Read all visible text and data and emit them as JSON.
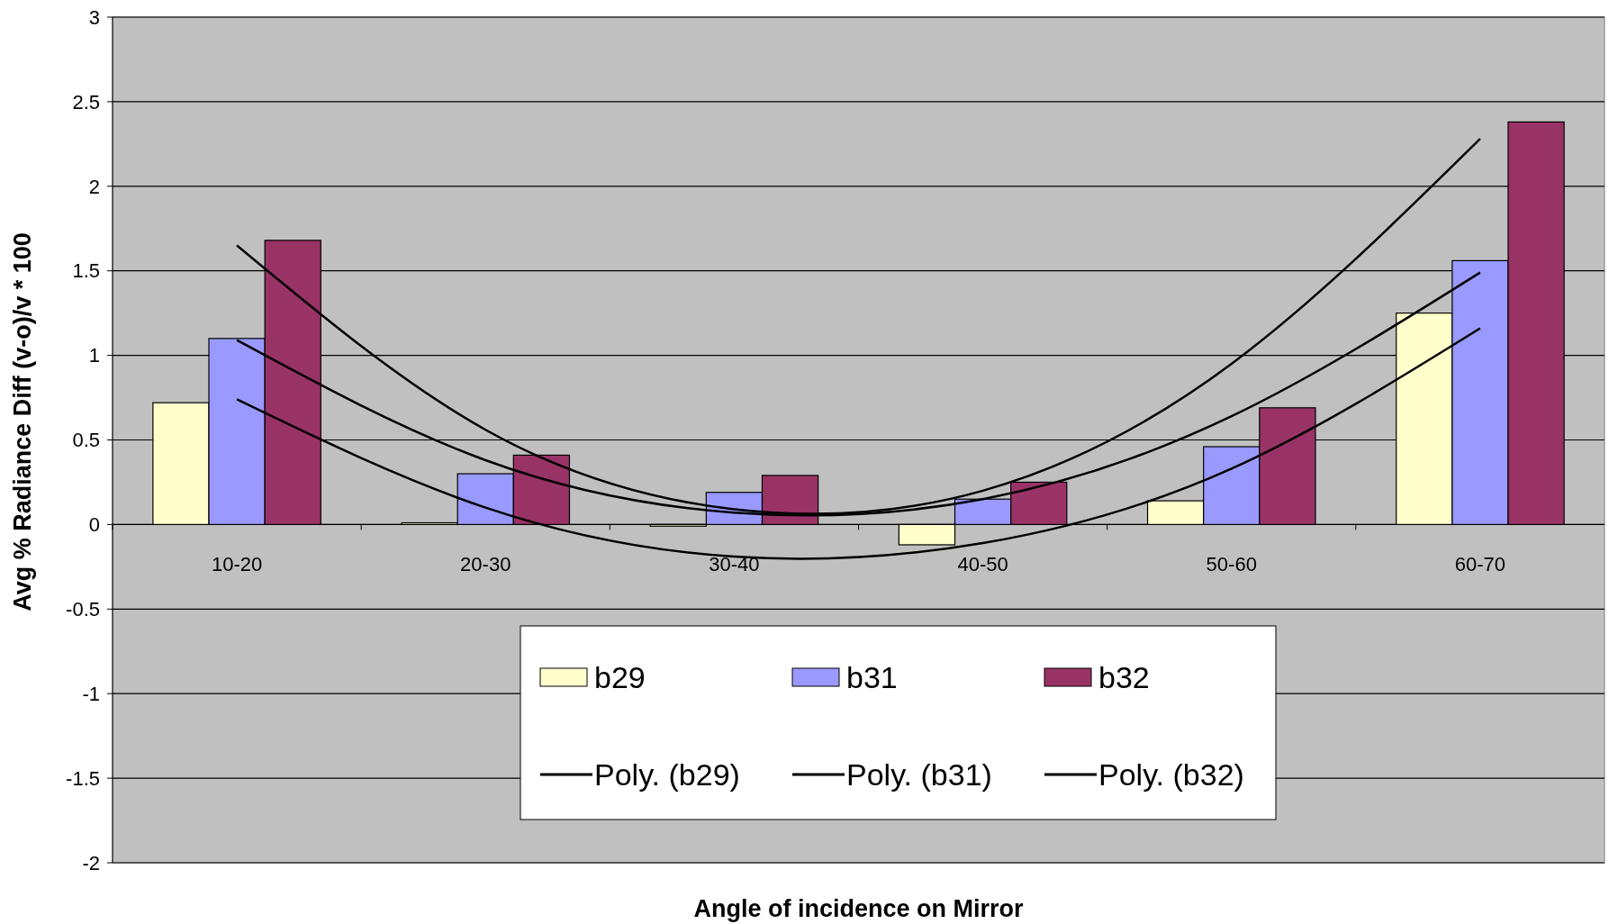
{
  "chart_data": {
    "type": "bar",
    "xlabel": "Angle of incidence on Mirror",
    "ylabel": "Avg % Radiance Diff (v-o)/v * 100",
    "categories": [
      "10-20",
      "20-30",
      "30-40",
      "40-50",
      "50-60",
      "60-70"
    ],
    "series": [
      {
        "name": "b29",
        "color": "#ffffcc",
        "values": [
          0.72,
          0.01,
          -0.01,
          -0.12,
          0.14,
          1.25
        ]
      },
      {
        "name": "b31",
        "color": "#9999ff",
        "values": [
          1.1,
          0.3,
          0.19,
          0.15,
          0.46,
          1.56
        ]
      },
      {
        "name": "b32",
        "color": "#993366",
        "values": [
          1.68,
          0.41,
          0.29,
          0.25,
          0.69,
          2.38
        ]
      },
      {
        "name": "Poly. (b29)",
        "type": "line",
        "color": "#000000",
        "values": [
          0.74,
          0.1,
          -0.19,
          -0.11,
          0.33,
          1.16
        ]
      },
      {
        "name": "Poly. (b31)",
        "type": "line",
        "color": "#000000",
        "values": [
          1.09,
          0.38,
          0.07,
          0.15,
          0.64,
          1.49
        ]
      },
      {
        "name": "Poly. (b32)",
        "type": "line",
        "color": "#000000",
        "values": [
          1.65,
          0.56,
          0.09,
          0.2,
          0.95,
          2.28
        ]
      }
    ],
    "ylim": [
      -2,
      3
    ],
    "yticks": [
      -2,
      -1.5,
      -1,
      -0.5,
      0,
      0.5,
      1,
      1.5,
      2,
      2.5,
      3
    ],
    "grid": "y",
    "legend": "bottom",
    "marker": "none",
    "line_style": "solid"
  }
}
